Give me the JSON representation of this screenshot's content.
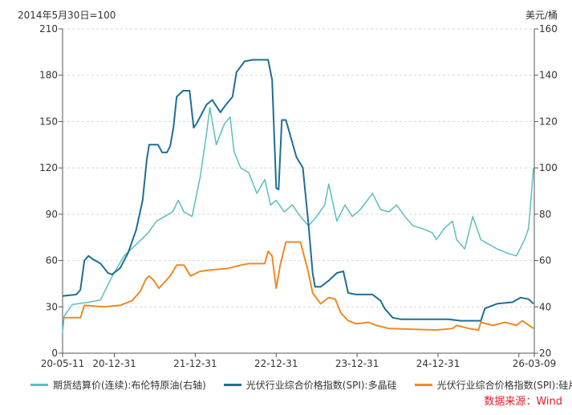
{
  "chart_data": {
    "type": "line",
    "left_axis_label": "2014年5月30日=100",
    "right_axis_label": "美元/桶",
    "ylim_left": [
      0,
      210
    ],
    "yticks_left": [
      0,
      30,
      60,
      90,
      120,
      150,
      180,
      210
    ],
    "ylim_right": [
      20,
      160
    ],
    "yticks_right": [
      20,
      40,
      60,
      80,
      100,
      120,
      140,
      160
    ],
    "xlim": [
      2020.36,
      2026.19
    ],
    "xticks": [
      {
        "x": 2020.36,
        "label": "20-05-11"
      },
      {
        "x": 2021.0,
        "label": "20-12-31"
      },
      {
        "x": 2022.0,
        "label": "21-12-31"
      },
      {
        "x": 2023.0,
        "label": "22-12-31"
      },
      {
        "x": 2024.0,
        "label": "23-12-31"
      },
      {
        "x": 2025.0,
        "label": "24-12-31"
      },
      {
        "x": 2026.0,
        "label": ""
      },
      {
        "x": 2026.19,
        "label": "26-03-09"
      }
    ],
    "grid": "horizontal-dashed",
    "legend_position": "bottom",
    "source": "数据来源：Wind",
    "series": [
      {
        "name": "期货结算价(连续):布伦特原油(右轴)",
        "axis": "right",
        "color": "#5bbfc0",
        "points": [
          [
            2020.36,
            29
          ],
          [
            2020.38,
            36
          ],
          [
            2020.48,
            41
          ],
          [
            2020.68,
            42
          ],
          [
            2020.83,
            43
          ],
          [
            2020.97,
            53
          ],
          [
            2021.12,
            62
          ],
          [
            2021.27,
            67
          ],
          [
            2021.42,
            72
          ],
          [
            2021.52,
            77
          ],
          [
            2021.62,
            79
          ],
          [
            2021.72,
            81
          ],
          [
            2021.79,
            86
          ],
          [
            2021.86,
            81
          ],
          [
            2021.96,
            79
          ],
          [
            2022.06,
            96
          ],
          [
            2022.14,
            115
          ],
          [
            2022.18,
            126
          ],
          [
            2022.26,
            110
          ],
          [
            2022.36,
            119
          ],
          [
            2022.43,
            122
          ],
          [
            2022.48,
            107
          ],
          [
            2022.56,
            100
          ],
          [
            2022.66,
            98
          ],
          [
            2022.76,
            89
          ],
          [
            2022.86,
            95
          ],
          [
            2022.93,
            84
          ],
          [
            2023.0,
            86
          ],
          [
            2023.1,
            81
          ],
          [
            2023.2,
            84
          ],
          [
            2023.3,
            79
          ],
          [
            2023.4,
            75
          ],
          [
            2023.5,
            79
          ],
          [
            2023.6,
            84
          ],
          [
            2023.65,
            93
          ],
          [
            2023.75,
            77
          ],
          [
            2023.85,
            84
          ],
          [
            2023.94,
            79
          ],
          [
            2024.04,
            82
          ],
          [
            2024.19,
            89
          ],
          [
            2024.29,
            82
          ],
          [
            2024.39,
            81
          ],
          [
            2024.49,
            84
          ],
          [
            2024.59,
            79
          ],
          [
            2024.69,
            75
          ],
          [
            2024.79,
            74
          ],
          [
            2024.93,
            72
          ],
          [
            2024.98,
            69
          ],
          [
            2025.08,
            74
          ],
          [
            2025.18,
            77
          ],
          [
            2025.23,
            69
          ],
          [
            2025.33,
            65
          ],
          [
            2025.43,
            79
          ],
          [
            2025.53,
            69
          ],
          [
            2025.63,
            67
          ],
          [
            2025.73,
            65
          ],
          [
            2025.87,
            63
          ],
          [
            2025.97,
            62
          ],
          [
            2026.07,
            69
          ],
          [
            2026.12,
            74
          ],
          [
            2026.18,
            100
          ]
        ]
      },
      {
        "name": "光伏行业综合价格指数(SPI):多晶硅",
        "axis": "left",
        "color": "#1f6e96",
        "points": [
          [
            2020.36,
            37
          ],
          [
            2020.53,
            38
          ],
          [
            2020.58,
            41
          ],
          [
            2020.63,
            60
          ],
          [
            2020.68,
            63
          ],
          [
            2020.73,
            61
          ],
          [
            2020.83,
            58
          ],
          [
            2020.92,
            52
          ],
          [
            2020.97,
            51
          ],
          [
            2021.07,
            55
          ],
          [
            2021.17,
            65
          ],
          [
            2021.27,
            80
          ],
          [
            2021.35,
            99
          ],
          [
            2021.4,
            125
          ],
          [
            2021.43,
            135
          ],
          [
            2021.54,
            135
          ],
          [
            2021.59,
            130
          ],
          [
            2021.65,
            130
          ],
          [
            2021.69,
            134
          ],
          [
            2021.73,
            146
          ],
          [
            2021.77,
            166
          ],
          [
            2021.85,
            170
          ],
          [
            2021.93,
            170
          ],
          [
            2021.98,
            146
          ],
          [
            2022.02,
            149
          ],
          [
            2022.14,
            161
          ],
          [
            2022.21,
            164
          ],
          [
            2022.31,
            156
          ],
          [
            2022.38,
            161
          ],
          [
            2022.46,
            166
          ],
          [
            2022.51,
            182
          ],
          [
            2022.61,
            189
          ],
          [
            2022.71,
            190
          ],
          [
            2022.9,
            190
          ],
          [
            2022.95,
            177
          ],
          [
            2023.0,
            107
          ],
          [
            2023.03,
            106
          ],
          [
            2023.07,
            151
          ],
          [
            2023.12,
            151
          ],
          [
            2023.25,
            127
          ],
          [
            2023.33,
            120
          ],
          [
            2023.4,
            83
          ],
          [
            2023.45,
            52
          ],
          [
            2023.48,
            43
          ],
          [
            2023.55,
            43
          ],
          [
            2023.65,
            47
          ],
          [
            2023.75,
            52
          ],
          [
            2023.83,
            53
          ],
          [
            2023.89,
            39
          ],
          [
            2023.99,
            38
          ],
          [
            2024.19,
            38
          ],
          [
            2024.29,
            34
          ],
          [
            2024.34,
            29
          ],
          [
            2024.44,
            23
          ],
          [
            2024.54,
            22
          ],
          [
            2025.13,
            22
          ],
          [
            2025.28,
            21
          ],
          [
            2025.53,
            21
          ],
          [
            2025.58,
            29
          ],
          [
            2025.73,
            32
          ],
          [
            2025.92,
            33
          ],
          [
            2026.02,
            36
          ],
          [
            2026.12,
            35
          ],
          [
            2026.18,
            32
          ]
        ]
      },
      {
        "name": "光伏行业综合价格指数(SPI):硅片",
        "axis": "left",
        "color": "#f08a24",
        "points": [
          [
            2020.36,
            23
          ],
          [
            2020.58,
            23
          ],
          [
            2020.63,
            31
          ],
          [
            2020.87,
            30
          ],
          [
            2021.07,
            31
          ],
          [
            2021.22,
            34
          ],
          [
            2021.32,
            40
          ],
          [
            2021.39,
            48
          ],
          [
            2021.43,
            50
          ],
          [
            2021.49,
            47
          ],
          [
            2021.55,
            42
          ],
          [
            2021.62,
            46
          ],
          [
            2021.69,
            50
          ],
          [
            2021.77,
            57
          ],
          [
            2021.86,
            57
          ],
          [
            2021.94,
            50
          ],
          [
            2022.06,
            53
          ],
          [
            2022.21,
            54
          ],
          [
            2022.41,
            55
          ],
          [
            2022.56,
            57
          ],
          [
            2022.66,
            58
          ],
          [
            2022.86,
            58
          ],
          [
            2022.9,
            66
          ],
          [
            2022.95,
            63
          ],
          [
            2023.0,
            42
          ],
          [
            2023.05,
            57
          ],
          [
            2023.12,
            72
          ],
          [
            2023.3,
            72
          ],
          [
            2023.4,
            52
          ],
          [
            2023.45,
            39
          ],
          [
            2023.55,
            32
          ],
          [
            2023.65,
            36
          ],
          [
            2023.73,
            35
          ],
          [
            2023.8,
            26
          ],
          [
            2023.89,
            21
          ],
          [
            2023.99,
            19
          ],
          [
            2024.14,
            20
          ],
          [
            2024.24,
            18
          ],
          [
            2024.39,
            16
          ],
          [
            2024.98,
            15
          ],
          [
            2025.18,
            16
          ],
          [
            2025.23,
            18
          ],
          [
            2025.38,
            16
          ],
          [
            2025.5,
            15
          ],
          [
            2025.53,
            20
          ],
          [
            2025.68,
            18
          ],
          [
            2025.83,
            20
          ],
          [
            2025.97,
            18
          ],
          [
            2026.04,
            21
          ],
          [
            2026.18,
            16
          ]
        ]
      }
    ]
  }
}
